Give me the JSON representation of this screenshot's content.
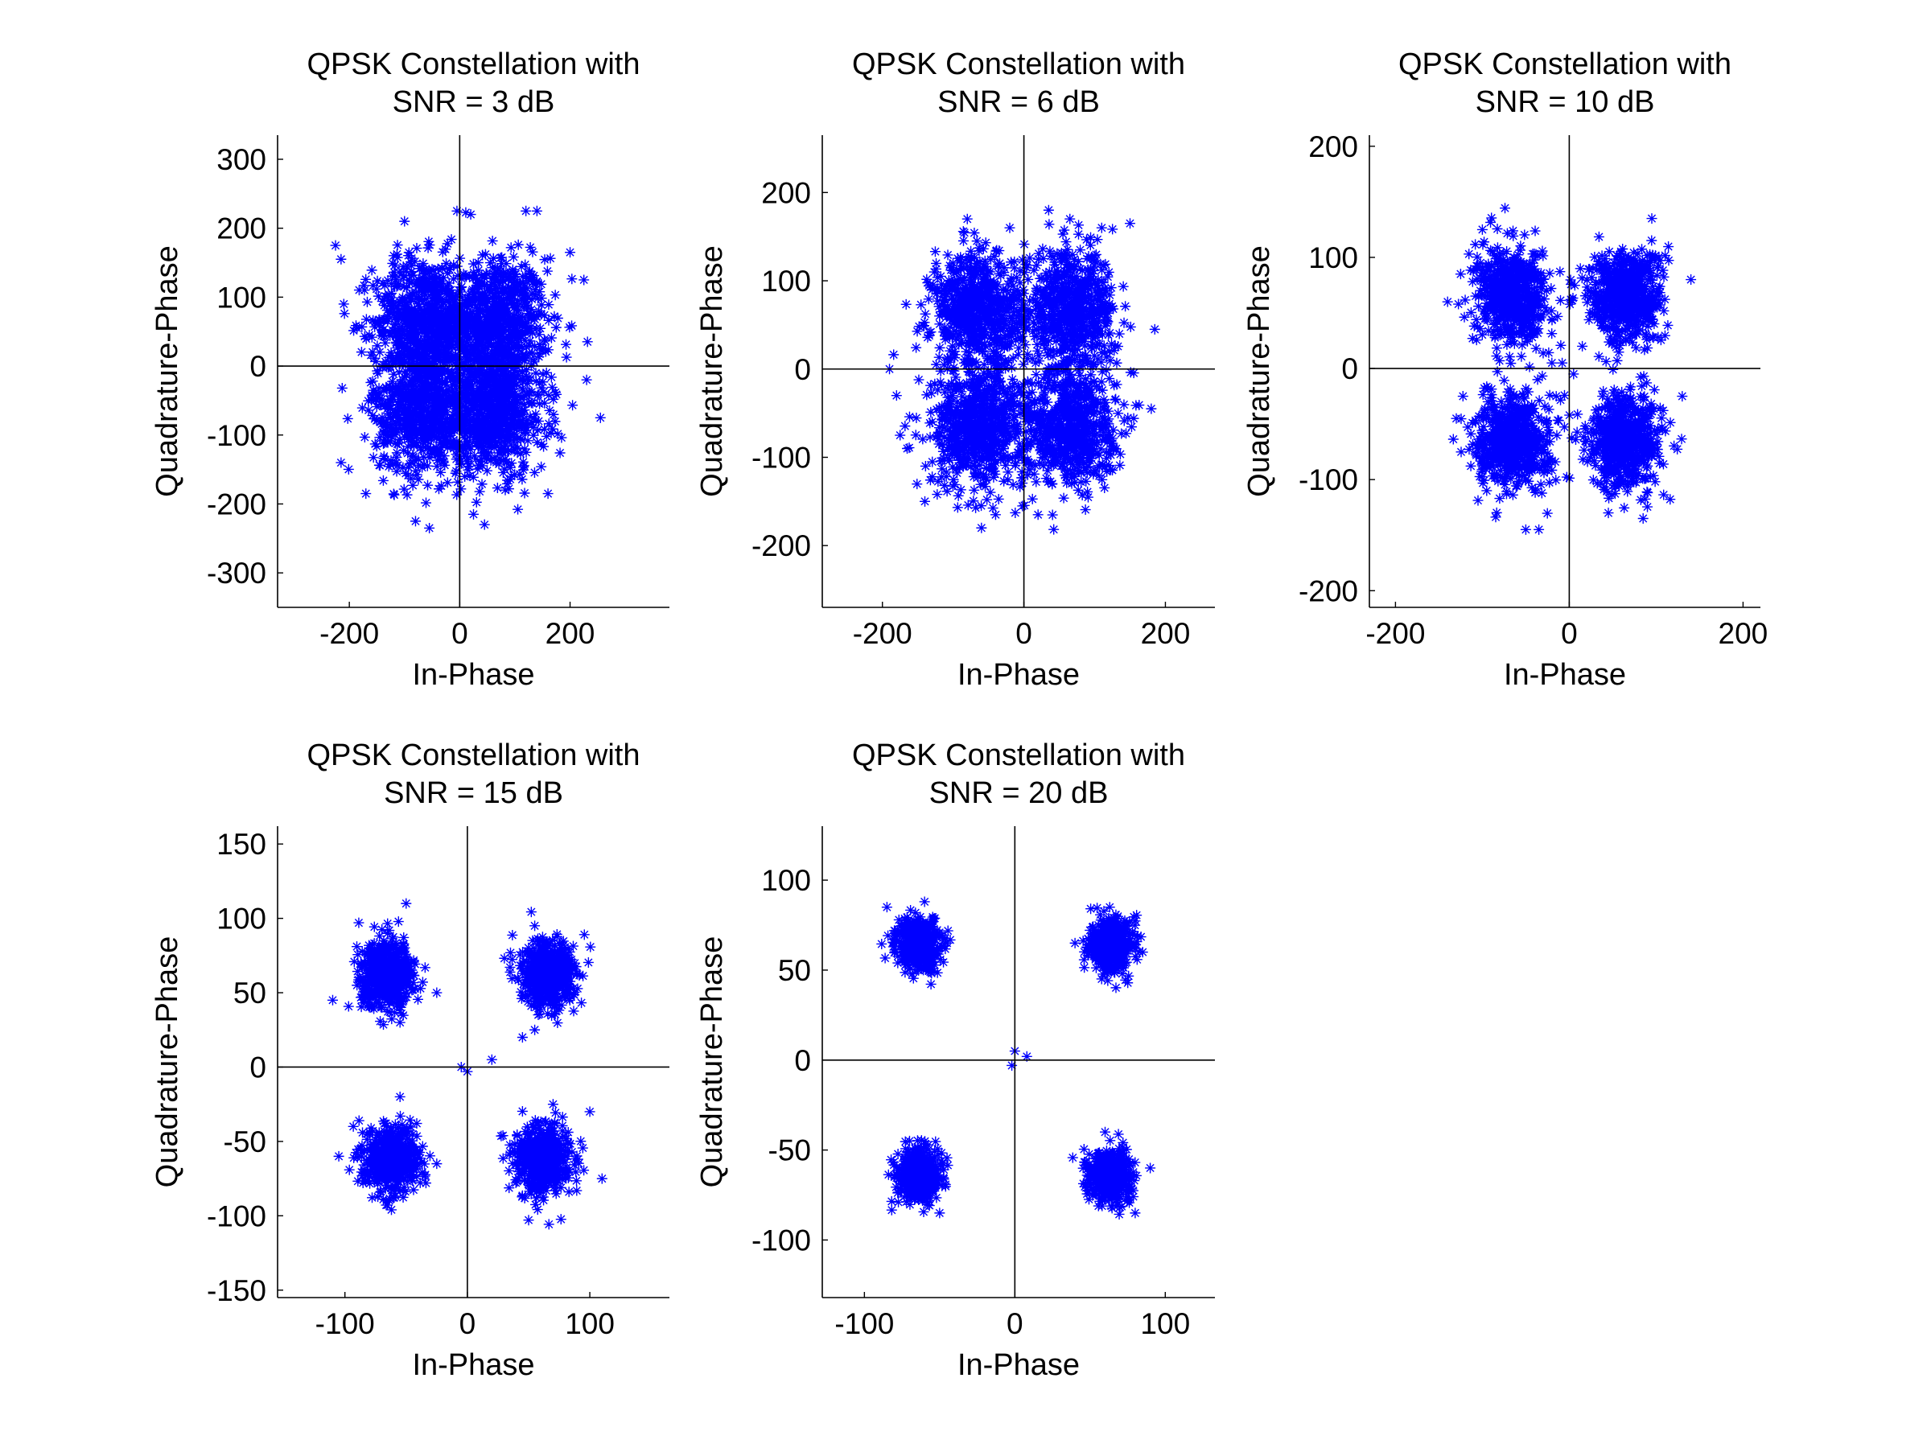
{
  "chart_data": [
    {
      "type": "scatter",
      "title": [
        "QPSK Constellation with",
        "SNR = 3 dB"
      ],
      "xlabel": "In-Phase",
      "ylabel": "Quadrature-Phase",
      "xlim": [
        -330,
        380
      ],
      "ylim": [
        -350,
        335
      ],
      "xticks": [
        -200,
        0,
        200
      ],
      "yticks": [
        -300,
        -200,
        -100,
        0,
        100,
        200,
        300
      ],
      "marker": "asterisk",
      "color": "#0000ff",
      "grid": false,
      "centers": [
        [
          65,
          65
        ],
        [
          -65,
          65
        ],
        [
          -65,
          -65
        ],
        [
          65,
          -65
        ]
      ],
      "noise_std": 46,
      "points_per_cluster": 700,
      "outliers": [
        [
          -225,
          175
        ],
        [
          -215,
          155
        ],
        [
          -100,
          210
        ],
        [
          -5,
          225
        ],
        [
          20,
          220
        ],
        [
          120,
          225
        ],
        [
          140,
          225
        ],
        [
          225,
          125
        ],
        [
          230,
          -20
        ],
        [
          255,
          -75
        ],
        [
          -215,
          -140
        ],
        [
          -170,
          -185
        ],
        [
          -55,
          -235
        ],
        [
          -80,
          -225
        ],
        [
          45,
          -230
        ],
        [
          25,
          -215
        ],
        [
          160,
          -185
        ],
        [
          200,
          165
        ],
        [
          -210,
          90
        ]
      ]
    },
    {
      "type": "scatter",
      "title": [
        "QPSK Constellation with",
        "SNR = 6 dB"
      ],
      "xlabel": "In-Phase",
      "ylabel": "Quadrature-Phase",
      "xlim": [
        -285,
        270
      ],
      "ylim": [
        -270,
        265
      ],
      "xticks": [
        -200,
        0,
        200
      ],
      "yticks": [
        -200,
        -100,
        0,
        100,
        200
      ],
      "marker": "asterisk",
      "color": "#0000ff",
      "grid": false,
      "centers": [
        [
          65,
          65
        ],
        [
          -65,
          65
        ],
        [
          -65,
          -65
        ],
        [
          65,
          -65
        ]
      ],
      "noise_std": 33,
      "points_per_cluster": 650,
      "outliers": [
        [
          -190,
          0
        ],
        [
          -180,
          -30
        ],
        [
          -175,
          -75
        ],
        [
          -165,
          -90
        ],
        [
          -140,
          -150
        ],
        [
          -60,
          -180
        ],
        [
          -40,
          -165
        ],
        [
          20,
          -165
        ],
        [
          35,
          180
        ],
        [
          65,
          170
        ],
        [
          110,
          160
        ],
        [
          150,
          165
        ],
        [
          180,
          -45
        ],
        [
          185,
          45
        ],
        [
          -80,
          170
        ],
        [
          -20,
          160
        ]
      ]
    },
    {
      "type": "scatter",
      "title": [
        "QPSK Constellation with",
        "SNR = 10 dB"
      ],
      "xlabel": "In-Phase",
      "ylabel": "Quadrature-Phase",
      "xlim": [
        -230,
        220
      ],
      "ylim": [
        -215,
        210
      ],
      "xticks": [
        -200,
        0,
        200
      ],
      "yticks": [
        -200,
        -100,
        0,
        100,
        200
      ],
      "marker": "asterisk",
      "color": "#0000ff",
      "grid": false,
      "centers": [
        [
          65,
          65
        ],
        [
          -65,
          65
        ],
        [
          -65,
          -65
        ],
        [
          65,
          -65
        ]
      ],
      "noise_std": 21,
      "points_per_cluster": 600,
      "outliers": [
        [
          -140,
          60
        ],
        [
          -125,
          85
        ],
        [
          -100,
          125
        ],
        [
          140,
          80
        ],
        [
          130,
          -25
        ],
        [
          95,
          135
        ],
        [
          -20,
          5
        ],
        [
          5,
          -5
        ],
        [
          15,
          20
        ],
        [
          -15,
          -25
        ],
        [
          -50,
          -145
        ],
        [
          -35,
          -145
        ],
        [
          45,
          -130
        ],
        [
          85,
          -135
        ],
        [
          -95,
          -110
        ],
        [
          -130,
          -45
        ]
      ]
    },
    {
      "type": "scatter",
      "title": [
        "QPSK Constellation with",
        "SNR = 15 dB"
      ],
      "xlabel": "In-Phase",
      "ylabel": "Quadrature-Phase",
      "xlim": [
        -155,
        165
      ],
      "ylim": [
        -155,
        162
      ],
      "xticks": [
        -100,
        0,
        100
      ],
      "yticks": [
        -150,
        -100,
        -50,
        0,
        50,
        100,
        150
      ],
      "marker": "asterisk",
      "color": "#0000ff",
      "grid": false,
      "centers": [
        [
          65,
          62
        ],
        [
          -65,
          62
        ],
        [
          -62,
          -62
        ],
        [
          62,
          -62
        ]
      ],
      "noise_std": 11,
      "points_per_cluster": 550,
      "outliers": [
        [
          -50,
          110
        ],
        [
          -25,
          50
        ],
        [
          -25,
          -65
        ],
        [
          -55,
          30
        ],
        [
          55,
          25
        ],
        [
          45,
          20
        ],
        [
          -105,
          -60
        ],
        [
          110,
          -75
        ],
        [
          100,
          -30
        ],
        [
          -55,
          -20
        ],
        [
          70,
          -25
        ],
        [
          -5,
          0
        ],
        [
          0,
          -3
        ],
        [
          20,
          5
        ],
        [
          55,
          95
        ],
        [
          -110,
          45
        ]
      ]
    },
    {
      "type": "scatter",
      "title": [
        "QPSK Constellation with",
        "SNR = 20 dB"
      ],
      "xlabel": "In-Phase",
      "ylabel": "Quadrature-Phase",
      "xlim": [
        -128,
        133
      ],
      "ylim": [
        -132,
        130
      ],
      "xticks": [
        -100,
        0,
        100
      ],
      "yticks": [
        -100,
        -50,
        0,
        50,
        100
      ],
      "marker": "asterisk",
      "color": "#0000ff",
      "grid": false,
      "centers": [
        [
          64,
          64
        ],
        [
          -64,
          64
        ],
        [
          -64,
          -64
        ],
        [
          64,
          -64
        ]
      ],
      "noise_std": 7,
      "points_per_cluster": 500,
      "outliers": [
        [
          -85,
          85
        ],
        [
          -60,
          88
        ],
        [
          -45,
          65
        ],
        [
          40,
          65
        ],
        [
          85,
          60
        ],
        [
          -80,
          -65
        ],
        [
          -70,
          -45
        ],
        [
          60,
          -40
        ],
        [
          80,
          -85
        ],
        [
          0,
          5
        ],
        [
          -2,
          -3
        ],
        [
          8,
          2
        ],
        [
          90,
          -60
        ],
        [
          -50,
          -85
        ]
      ]
    }
  ]
}
